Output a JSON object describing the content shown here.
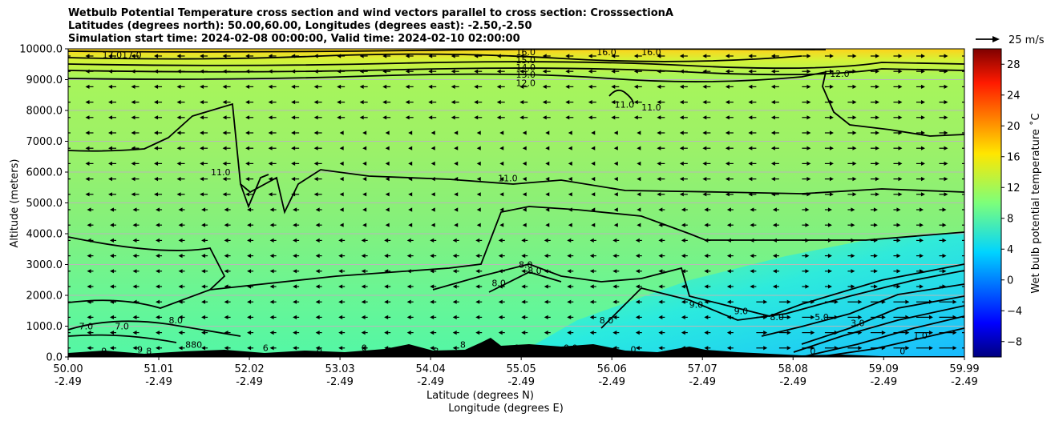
{
  "chart_data": {
    "type": "heatmap",
    "title_lines": [
      "Wetbulb Potential Temperature cross section and wind vectors parallel to cross section: CrosssectionA",
      "Latitudes (degrees north): 50.00,60.00, Longitudes (degrees east): -2.50,-2.50",
      "Simulation start time: 2024-02-08 00:00:00, Valid time: 2024-02-10 02:00:00"
    ],
    "ylabel": "Altitude (meters)",
    "xlabel_lines": [
      "Latitude (degrees N)",
      "Longitude (degrees E)"
    ],
    "ylim": [
      0,
      10000
    ],
    "y_ticks": [
      "0.0",
      "1000.0",
      "2000.0",
      "3000.0",
      "4000.0",
      "5000.0",
      "6000.0",
      "7000.0",
      "8000.0",
      "9000.0",
      "10000.0"
    ],
    "x_ticks": [
      {
        "lat": "50.00",
        "lon": "-2.49"
      },
      {
        "lat": "51.01",
        "lon": "-2.49"
      },
      {
        "lat": "52.02",
        "lon": "-2.49"
      },
      {
        "lat": "53.03",
        "lon": "-2.49"
      },
      {
        "lat": "54.04",
        "lon": "-2.49"
      },
      {
        "lat": "55.05",
        "lon": "-2.49"
      },
      {
        "lat": "56.06",
        "lon": "-2.49"
      },
      {
        "lat": "57.07",
        "lon": "-2.49"
      },
      {
        "lat": "58.08",
        "lon": "-2.49"
      },
      {
        "lat": "59.09",
        "lon": "-2.49"
      },
      {
        "lat": "59.99",
        "lon": "-2.49"
      }
    ],
    "colorbar": {
      "label": "Wet bulb potential temperature $^\\circ$C",
      "label_display": "Wet bulb potential temperature ˚C",
      "range": [
        -10,
        30
      ],
      "ticks": [
        "−8",
        "−4",
        "0",
        "4",
        "8",
        "12",
        "16",
        "20",
        "24",
        "28"
      ]
    },
    "quiver_key": "25 m/s",
    "contour_labels": [
      {
        "text": "17.017.0",
        "lat": 50.6,
        "alt": 9800
      },
      {
        "text": "16.0",
        "lat": 55.1,
        "alt": 9900
      },
      {
        "text": "15.0",
        "lat": 55.1,
        "alt": 9640
      },
      {
        "text": "14.0",
        "lat": 55.1,
        "alt": 9400
      },
      {
        "text": "13.0",
        "lat": 55.1,
        "alt": 9170
      },
      {
        "text": "12.0",
        "lat": 55.1,
        "alt": 8900
      },
      {
        "text": "16.0",
        "lat": 56.0,
        "alt": 9900
      },
      {
        "text": "16.0",
        "lat": 56.5,
        "alt": 9900
      },
      {
        "text": "11.0",
        "lat": 56.2,
        "alt": 8200
      },
      {
        "text": "11.0",
        "lat": 56.5,
        "alt": 8100
      },
      {
        "text": "12.0",
        "lat": 58.6,
        "alt": 9200
      },
      {
        "text": "11.0",
        "lat": 51.7,
        "alt": 6000
      },
      {
        "text": "11.0",
        "lat": 54.9,
        "alt": 5800
      },
      {
        "text": "8.0",
        "lat": 55.1,
        "alt": 3000
      },
      {
        "text": "8.0",
        "lat": 55.2,
        "alt": 2800
      },
      {
        "text": "8.0",
        "lat": 54.8,
        "alt": 2400
      },
      {
        "text": "9.0",
        "lat": 57.0,
        "alt": 1700
      },
      {
        "text": "9.0",
        "lat": 57.5,
        "alt": 1500
      },
      {
        "text": "8.0",
        "lat": 57.9,
        "alt": 1300
      },
      {
        "text": "8.0",
        "lat": 56.0,
        "alt": 1200
      },
      {
        "text": "5.0",
        "lat": 58.4,
        "alt": 1300
      },
      {
        "text": "3.0",
        "lat": 58.8,
        "alt": 1100
      },
      {
        "text": "1.0",
        "lat": 59.5,
        "alt": 700
      },
      {
        "text": "7.0",
        "lat": 50.2,
        "alt": 1000
      },
      {
        "text": "7.0",
        "lat": 50.6,
        "alt": 1000
      },
      {
        "text": "8.0",
        "lat": 51.2,
        "alt": 1200
      },
      {
        "text": "880",
        "lat": 51.4,
        "alt": 400
      },
      {
        "text": "9",
        "lat": 50.4,
        "alt": 200
      },
      {
        "text": "9",
        "lat": 50.8,
        "alt": 250
      },
      {
        "text": "8",
        "lat": 50.9,
        "alt": 200
      },
      {
        "text": "6",
        "lat": 52.2,
        "alt": 300
      },
      {
        "text": "0",
        "lat": 52.8,
        "alt": 200
      },
      {
        "text": "0",
        "lat": 53.3,
        "alt": 300
      },
      {
        "text": "8",
        "lat": 54.1,
        "alt": 200
      },
      {
        "text": "8",
        "lat": 54.4,
        "alt": 400
      },
      {
        "text": "0",
        "lat": 55.0,
        "alt": 300
      },
      {
        "text": "0.0",
        "lat": 55.6,
        "alt": 300
      },
      {
        "text": "0",
        "lat": 56.3,
        "alt": 250
      },
      {
        "text": "0",
        "lat": 58.3,
        "alt": 200
      },
      {
        "text": "0",
        "lat": 59.3,
        "alt": 200
      }
    ]
  }
}
